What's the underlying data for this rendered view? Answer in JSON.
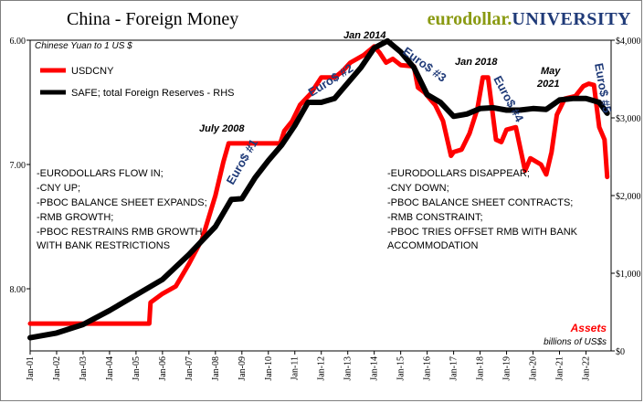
{
  "header": {
    "title": "China - Foreign Money",
    "brand_part1": "eurodollar.",
    "brand_part2": "UNIVERSITY"
  },
  "chart_data": {
    "type": "line",
    "left_axis_label": "Chinese Yuan to 1 US $",
    "right_axis_caption": "Assets",
    "right_axis_units": "billions of US$s",
    "legend": [
      "USDCNY",
      "SAFE; total Foreign Reserves - RHS"
    ],
    "legend_position": "top-left",
    "left_axis": {
      "inverted": true,
      "ylim": [
        8.5,
        6.0
      ],
      "ticks": [
        "6.00",
        "7.00",
        "8.00"
      ]
    },
    "right_axis": {
      "ylim": [
        0,
        4000
      ],
      "ticks": [
        "$0",
        "$1,000",
        "$2,000",
        "$3,000",
        "$4,000"
      ]
    },
    "x_ticks": [
      "Jan-01",
      "Jan-02",
      "Jan-03",
      "Jan-04",
      "Jan-05",
      "Jan-06",
      "Jan-07",
      "Jan-08",
      "Jan-09",
      "Jan-10",
      "Jan-11",
      "Jan-12",
      "Jan-13",
      "Jan-14",
      "Jan-15",
      "Jan-16",
      "Jan-17",
      "Jan-18",
      "Jan-19",
      "Jan-20",
      "Jan-21",
      "Jan-22"
    ],
    "series": [
      {
        "name": "USDCNY",
        "color": "#ff0000",
        "axis": "left",
        "x": [
          2001.0,
          2005.5,
          2005.55,
          2006.0,
          2006.5,
          2007.0,
          2007.5,
          2008.0,
          2008.3,
          2008.5,
          2009.0,
          2009.5,
          2010.0,
          2010.45,
          2010.6,
          2010.9,
          2011.2,
          2011.6,
          2012.0,
          2012.5,
          2012.8,
          2013.1,
          2013.6,
          2014.0,
          2014.2,
          2014.45,
          2014.7,
          2015.0,
          2015.5,
          2015.65,
          2015.9,
          2016.3,
          2016.6,
          2016.9,
          2017.0,
          2017.3,
          2017.6,
          2017.9,
          2018.1,
          2018.3,
          2018.6,
          2018.8,
          2019.0,
          2019.35,
          2019.7,
          2019.9,
          2020.3,
          2020.5,
          2020.7,
          2020.9,
          2021.2,
          2021.6,
          2021.9,
          2022.1,
          2022.3,
          2022.5,
          2022.7,
          2022.8
        ],
        "values": [
          8.28,
          8.28,
          8.11,
          8.04,
          7.98,
          7.8,
          7.6,
          7.25,
          6.98,
          6.83,
          6.83,
          6.83,
          6.83,
          6.83,
          6.73,
          6.65,
          6.52,
          6.43,
          6.3,
          6.3,
          6.25,
          6.18,
          6.12,
          6.05,
          6.1,
          6.18,
          6.15,
          6.2,
          6.21,
          6.38,
          6.42,
          6.52,
          6.65,
          6.93,
          6.9,
          6.88,
          6.75,
          6.55,
          6.3,
          6.3,
          6.8,
          6.82,
          6.72,
          6.7,
          7.05,
          6.95,
          7.0,
          7.08,
          6.9,
          6.6,
          6.47,
          6.45,
          6.37,
          6.35,
          6.36,
          6.7,
          6.8,
          7.1
        ]
      },
      {
        "name": "SAFE; total Foreign Reserves - RHS",
        "color": "#000000",
        "axis": "right",
        "x": [
          2001.0,
          2002.0,
          2003.0,
          2004.0,
          2005.0,
          2006.0,
          2007.0,
          2008.0,
          2008.6,
          2009.0,
          2009.5,
          2010.0,
          2010.5,
          2011.0,
          2011.5,
          2012.0,
          2012.5,
          2013.0,
          2013.5,
          2014.0,
          2014.5,
          2015.0,
          2015.5,
          2016.0,
          2016.5,
          2017.0,
          2017.5,
          2018.0,
          2018.5,
          2019.0,
          2019.5,
          2020.0,
          2020.5,
          2021.0,
          2021.5,
          2022.0,
          2022.5,
          2022.8
        ],
        "values": [
          170,
          230,
          340,
          520,
          720,
          920,
          1240,
          1600,
          1950,
          1960,
          2230,
          2450,
          2650,
          2900,
          3200,
          3200,
          3250,
          3450,
          3650,
          3900,
          3990,
          3850,
          3650,
          3300,
          3200,
          3020,
          3050,
          3120,
          3130,
          3100,
          3100,
          3120,
          3110,
          3230,
          3250,
          3250,
          3200,
          3060
        ]
      }
    ],
    "annotations": [
      "Jan 2014",
      "July 2008",
      "Jan 2018",
      "May 2021",
      "Euro$ #1",
      "Euro$ #2",
      "Euro$ #3",
      "Euro$ #4",
      "Euro$ #5"
    ]
  },
  "notes": {
    "left": [
      "-EURODOLLARS FLOW IN;",
      "-CNY UP;",
      "-PBOC BALANCE SHEET EXPANDS;",
      "-RMB GROWTH;",
      "-PBOC RESTRAINS RMB GROWTH",
      "WITH BANK RESTRICTIONS"
    ],
    "right": [
      "-EURODOLLARS DISAPPEAR;",
      "-CNY DOWN;",
      "-PBOC BALANCE SHEET CONTRACTS;",
      "-RMB CONSTRAINT;",
      "-PBOC TRIES OFFSET RMB WITH BANK",
      "ACCOMMODATION"
    ]
  }
}
